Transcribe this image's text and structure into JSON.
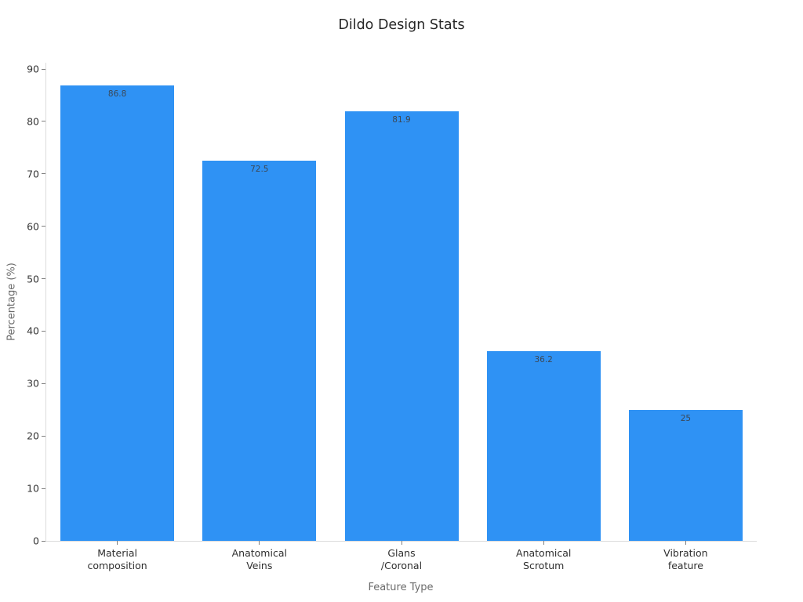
{
  "chart_data": {
    "type": "bar",
    "title": "Dildo Design Stats",
    "xlabel": "Feature Type",
    "ylabel": "Percentage (%)",
    "categories": [
      "Material\ncomposition",
      "Anatomical\nVeins",
      "Glans\n/Coronal",
      "Anatomical\nScrotum",
      "Vibration\nfeature"
    ],
    "values": [
      86.8,
      72.5,
      81.9,
      36.2,
      25
    ],
    "value_labels": [
      "86.8",
      "72.5",
      "81.9",
      "36.2",
      "25"
    ],
    "value_labels_position": "inside-top",
    "ylim": [
      0,
      90
    ],
    "yticks": [
      0,
      10,
      20,
      30,
      40,
      50,
      60,
      70,
      80,
      90
    ],
    "grid": false,
    "legend": false,
    "bar_color": "#2f92f4",
    "background_color": "#ffffff"
  }
}
